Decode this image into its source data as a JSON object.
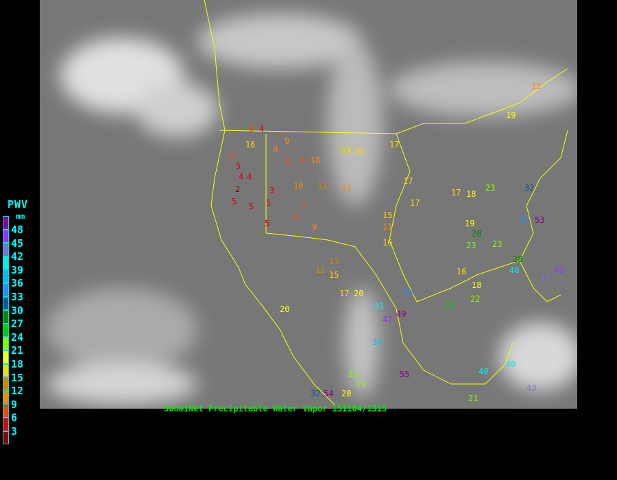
{
  "caption": "SuomiNet Precipitable Water Vapor 151104/1315",
  "legend": {
    "title": "PWV",
    "unit": "mm",
    "labels": [
      "48",
      "45",
      "42",
      "39",
      "36",
      "33",
      "30",
      "27",
      "24",
      "21",
      "18",
      "15",
      "12",
      "9",
      "6",
      "3"
    ],
    "colors": [
      "#8b008b",
      "#9a30ff",
      "#8070d0",
      "#00eeee",
      "#00bbee",
      "#1e90ff",
      "#005a9c",
      "#008800",
      "#00cc00",
      "#80ff00",
      "#ffff00",
      "#ffd700",
      "#cc8800",
      "#ff8800",
      "#ff4400",
      "#dd0000",
      "#8b0000"
    ]
  },
  "map": {
    "background": "#7a7a7a",
    "boundary_color": "#ffff00",
    "stations": [
      "6",
      "4",
      "6",
      "5",
      "4",
      "4",
      "2",
      "5",
      "5",
      "3",
      "5",
      "9",
      "8",
      "6",
      "5",
      "7",
      "8",
      "10",
      "9",
      "13",
      "11",
      "12",
      "15",
      "16",
      "17",
      "17",
      "15",
      "16",
      "17",
      "11",
      "17",
      "18",
      "19",
      "23",
      "23",
      "32",
      "35",
      "53",
      "16",
      "18",
      "23",
      "28",
      "40",
      "43",
      "45",
      "47",
      "49",
      "41",
      "36",
      "20",
      "21",
      "40",
      "35",
      "25",
      "20",
      "15",
      "21",
      "17",
      "13",
      "16",
      "20",
      "54",
      "32",
      "55",
      "40",
      "43",
      "21",
      "11",
      "19",
      "10",
      "9",
      "22",
      "28"
    ]
  }
}
